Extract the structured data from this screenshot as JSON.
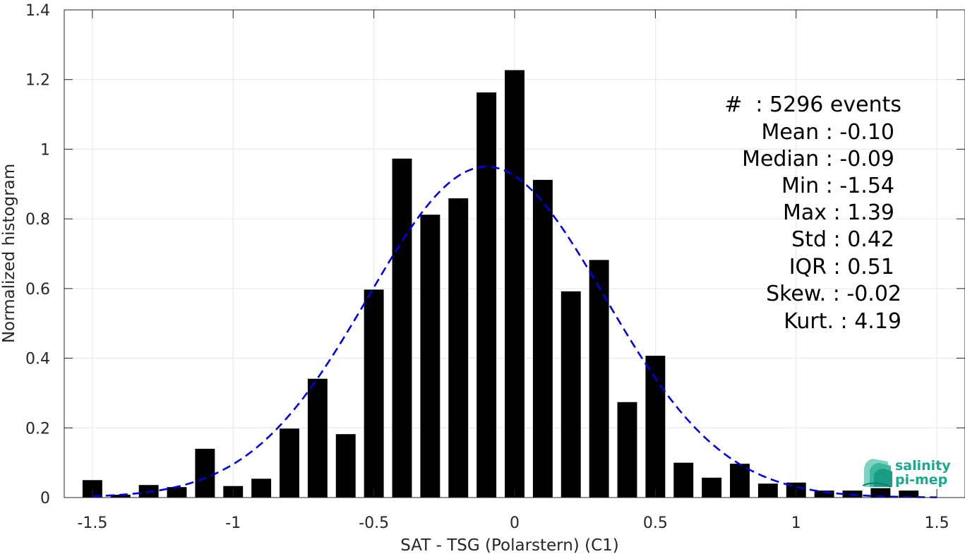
{
  "chart_data": {
    "type": "bar",
    "xlabel": "SAT - TSG (Polarstern) (C1)",
    "ylabel": "Normalized histogram",
    "xlim": [
      -1.6,
      1.6
    ],
    "ylim": [
      0,
      1.4
    ],
    "x_ticks": [
      -1.5,
      -1,
      -0.5,
      0,
      0.5,
      1,
      1.5
    ],
    "x_tick_labels": [
      "-1.5",
      "-1",
      "-0.5",
      "0",
      "0.5",
      "1",
      "1.5"
    ],
    "y_ticks": [
      0,
      0.2,
      0.4,
      0.6,
      0.8,
      1,
      1.2,
      1.4
    ],
    "y_tick_labels": [
      "0",
      "0.2",
      "0.4",
      "0.6",
      "0.8",
      "1",
      "1.2",
      "1.4"
    ],
    "grid": true,
    "bar_color": "#000000",
    "bins": [
      {
        "x": -1.5,
        "value": 0.05
      },
      {
        "x": -1.4,
        "value": 0.008
      },
      {
        "x": -1.3,
        "value": 0.036
      },
      {
        "x": -1.2,
        "value": 0.03
      },
      {
        "x": -1.1,
        "value": 0.14
      },
      {
        "x": -1.0,
        "value": 0.033
      },
      {
        "x": -0.9,
        "value": 0.054
      },
      {
        "x": -0.8,
        "value": 0.198
      },
      {
        "x": -0.7,
        "value": 0.341
      },
      {
        "x": -0.6,
        "value": 0.182
      },
      {
        "x": -0.5,
        "value": 0.597
      },
      {
        "x": -0.4,
        "value": 0.973
      },
      {
        "x": -0.3,
        "value": 0.812
      },
      {
        "x": -0.2,
        "value": 0.859
      },
      {
        "x": -0.1,
        "value": 1.163
      },
      {
        "x": 0.0,
        "value": 1.227
      },
      {
        "x": 0.1,
        "value": 0.912
      },
      {
        "x": 0.2,
        "value": 0.592
      },
      {
        "x": 0.3,
        "value": 0.682
      },
      {
        "x": 0.4,
        "value": 0.274
      },
      {
        "x": 0.5,
        "value": 0.407
      },
      {
        "x": 0.6,
        "value": 0.1
      },
      {
        "x": 0.7,
        "value": 0.057
      },
      {
        "x": 0.8,
        "value": 0.097
      },
      {
        "x": 0.9,
        "value": 0.04
      },
      {
        "x": 1.0,
        "value": 0.043
      },
      {
        "x": 1.1,
        "value": 0.02
      },
      {
        "x": 1.2,
        "value": 0.02
      },
      {
        "x": 1.3,
        "value": 0.027
      },
      {
        "x": 1.4,
        "value": 0.02
      }
    ],
    "fit_curve": {
      "type": "normal",
      "mean": -0.1,
      "std": 0.42,
      "color": "#0000e6",
      "style": "dashed",
      "x_range": [
        -1.5,
        1.5
      ]
    }
  },
  "stats": [
    {
      "name": "count",
      "label": "#  : 5296 events"
    },
    {
      "name": "mean",
      "label": "Mean : -0.10"
    },
    {
      "name": "median",
      "label": "Median : -0.09"
    },
    {
      "name": "min",
      "label": "Min : -1.54"
    },
    {
      "name": "max",
      "label": "Max : 1.39"
    },
    {
      "name": "std",
      "label": "Std : 0.42"
    },
    {
      "name": "iqr",
      "label": "IQR : 0.51"
    },
    {
      "name": "skew",
      "label": "Skew. : -0.02"
    },
    {
      "name": "kurt",
      "label": "Kurt. : 4.19"
    }
  ],
  "logo": {
    "line1": "salinity",
    "line2": "pi-mep",
    "color": "#1aa88e"
  }
}
